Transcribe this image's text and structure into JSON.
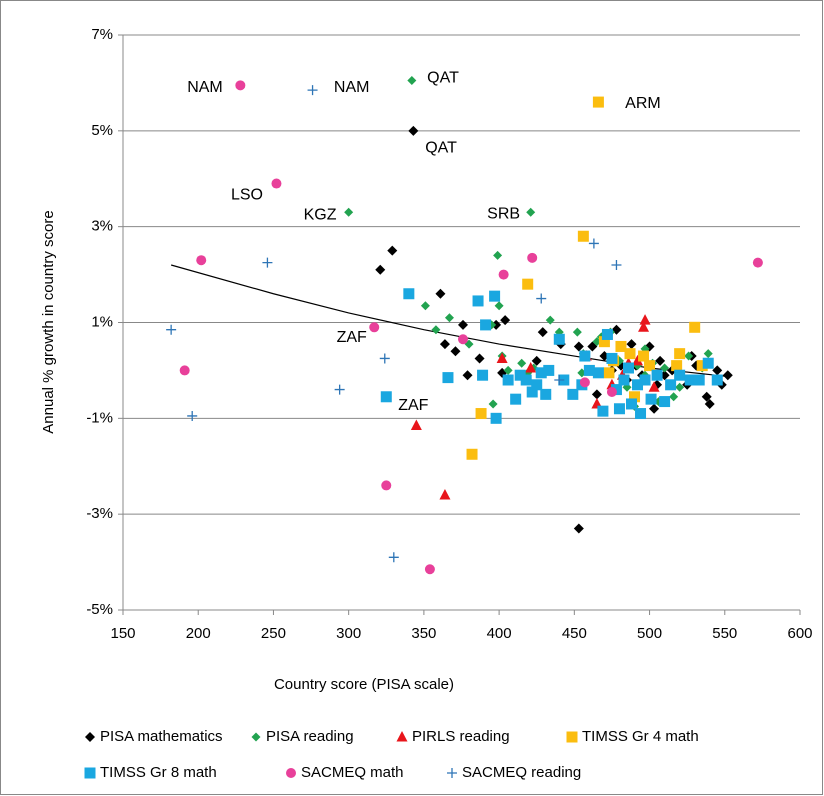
{
  "chart_data": {
    "type": "scatter",
    "xlabel": "Country score (PISA scale)",
    "ylabel": "Annual % growth in country score",
    "xlim": [
      150,
      600
    ],
    "xticks": [
      150,
      200,
      250,
      300,
      350,
      400,
      450,
      500,
      550,
      600
    ],
    "ylim": [
      -5,
      7
    ],
    "yticks": [
      {
        "value": -5,
        "label": "-5%"
      },
      {
        "value": -3,
        "label": "-3%"
      },
      {
        "value": -1,
        "label": "-1%"
      },
      {
        "value": 1,
        "label": "1%"
      },
      {
        "value": 3,
        "label": "3%"
      },
      {
        "value": 5,
        "label": "5%"
      },
      {
        "value": 7,
        "label": "7%"
      }
    ],
    "grid": true,
    "legend": "bottom",
    "series": [
      {
        "name": "PISA mathematics",
        "color": "#000000",
        "marker": "diamond",
        "x": [
          343,
          321,
          329,
          361,
          364,
          371,
          376,
          379,
          387,
          398,
          404,
          402,
          425,
          429,
          441,
          453,
          453,
          462,
          465,
          470,
          478,
          481,
          488,
          491,
          495,
          500,
          503,
          507,
          510,
          515,
          520,
          525,
          528,
          531,
          538,
          540,
          545,
          548,
          552,
          505,
          485,
          475
        ],
        "y": [
          5.0,
          2.1,
          2.5,
          1.6,
          0.55,
          0.4,
          0.95,
          -0.1,
          0.25,
          0.95,
          1.05,
          -0.05,
          0.2,
          0.8,
          0.55,
          0.5,
          -3.3,
          0.5,
          -0.5,
          0.3,
          0.85,
          0.1,
          0.55,
          0.1,
          -0.1,
          0.5,
          -0.8,
          0.2,
          -0.1,
          0,
          -0.05,
          -0.3,
          0.3,
          0.1,
          -0.55,
          -0.7,
          0,
          -0.3,
          -0.1,
          -0.3,
          -0.2,
          0
        ]
      },
      {
        "name": "PISA reading",
        "color": "#22a350",
        "marker": "diamond-small",
        "x": [
          342,
          300,
          421,
          351,
          358,
          367,
          380,
          395,
          399,
          400,
          402,
          406,
          415,
          419,
          423,
          434,
          440,
          452,
          456,
          468,
          474,
          480,
          485,
          490,
          492,
          497,
          502,
          506,
          510,
          516,
          520,
          526,
          535,
          539,
          396,
          455,
          465,
          497
        ],
        "y": [
          6.05,
          3.3,
          3.3,
          1.35,
          0.85,
          1.1,
          0.55,
          0.95,
          2.4,
          1.35,
          0.3,
          0,
          0.15,
          -0.05,
          0.05,
          1.05,
          0.8,
          0.8,
          0.35,
          0.7,
          0.8,
          0.2,
          -0.35,
          -0.75,
          0.1,
          0.45,
          0.15,
          -0.65,
          0.05,
          -0.55,
          -0.35,
          0.3,
          0.05,
          0.35,
          -0.7,
          -0.05,
          0.6,
          -0.1
        ]
      },
      {
        "name": "PIRLS reading",
        "color": "#e8151b",
        "marker": "triangle",
        "x": [
          345,
          364,
          402,
          421,
          458,
          465,
          482,
          486,
          496,
          497,
          503,
          475,
          492
        ],
        "y": [
          -1.15,
          -2.6,
          0.25,
          0.05,
          0.3,
          -0.7,
          -0.1,
          0.15,
          0.9,
          1.05,
          -0.35,
          -0.3,
          0.2
        ]
      },
      {
        "name": "TIMSS Gr 4 math",
        "color": "#fbbd0f",
        "marker": "square",
        "x": [
          466,
          456,
          419,
          388,
          382,
          470,
          476,
          481,
          487,
          490,
          496,
          500,
          518,
          520,
          530,
          535,
          473
        ],
        "y": [
          5.6,
          2.8,
          1.8,
          -0.9,
          -1.75,
          0.6,
          0.2,
          0.5,
          0.35,
          -0.55,
          0.3,
          0.1,
          0.1,
          0.35,
          0.9,
          0.1,
          -0.05
        ]
      },
      {
        "name": "TIMSS Gr 8 math",
        "color": "#1aa7e0",
        "marker": "square",
        "x": [
          340,
          325,
          366,
          386,
          389,
          391,
          397,
          398,
          406,
          411,
          414,
          418,
          422,
          425,
          428,
          431,
          433,
          440,
          443,
          449,
          455,
          460,
          466,
          469,
          472,
          475,
          478,
          480,
          483,
          486,
          488,
          492,
          494,
          497,
          501,
          505,
          510,
          514,
          520,
          527,
          533,
          539,
          545,
          457
        ],
        "y": [
          1.6,
          -0.55,
          -0.15,
          1.45,
          -0.1,
          0.95,
          1.55,
          -1.0,
          -0.2,
          -0.6,
          -0.1,
          -0.2,
          -0.45,
          -0.3,
          -0.05,
          -0.5,
          0,
          0.65,
          -0.2,
          -0.5,
          -0.3,
          0,
          -0.05,
          -0.85,
          0.75,
          0.25,
          -0.4,
          -0.8,
          -0.2,
          0.05,
          -0.7,
          -0.3,
          -0.9,
          -0.2,
          -0.6,
          -0.1,
          -0.65,
          -0.3,
          -0.1,
          -0.2,
          -0.2,
          0.15,
          -0.2,
          0.3
        ]
      },
      {
        "name": "SACMEQ math",
        "color": "#e8409a",
        "marker": "circle",
        "x": [
          228,
          252,
          202,
          191,
          317,
          376,
          403,
          422,
          457,
          475,
          325,
          354,
          572
        ],
        "y": [
          5.95,
          3.9,
          2.3,
          0,
          0.9,
          0.65,
          2.0,
          2.35,
          -0.25,
          -0.45,
          -2.4,
          -4.15,
          2.25
        ]
      },
      {
        "name": "SACMEQ reading",
        "color": "#2e75b6",
        "marker": "plus",
        "x": [
          276,
          182,
          196,
          246,
          294,
          324,
          330,
          428,
          463,
          478,
          440
        ],
        "y": [
          5.85,
          0.85,
          -0.95,
          2.25,
          -0.4,
          0.25,
          -3.9,
          1.5,
          2.65,
          2.2,
          -0.2
        ]
      }
    ],
    "trendline": {
      "x": [
        182,
        250,
        300,
        350,
        400,
        450,
        500,
        550
      ],
      "y": [
        2.2,
        1.6,
        1.2,
        0.85,
        0.55,
        0.3,
        0.05,
        -0.12
      ],
      "color": "#000000"
    },
    "annotations": [
      {
        "text": "NAM",
        "x": 204.5,
        "y": 5.9
      },
      {
        "text": "NAM",
        "x": 302,
        "y": 5.9
      },
      {
        "text": "QAT",
        "x": 362.7,
        "y": 6.1
      },
      {
        "text": "QAT",
        "x": 361.4,
        "y": 4.64
      },
      {
        "text": "ARM",
        "x": 495.6,
        "y": 5.56
      },
      {
        "text": "LSO",
        "x": 232.4,
        "y": 3.66
      },
      {
        "text": "KGZ",
        "x": 281,
        "y": 3.24
      },
      {
        "text": "SRB",
        "x": 403,
        "y": 3.26
      },
      {
        "text": "ZAF",
        "x": 302,
        "y": 0.68
      },
      {
        "text": "ZAF",
        "x": 343,
        "y": -0.74
      }
    ]
  }
}
